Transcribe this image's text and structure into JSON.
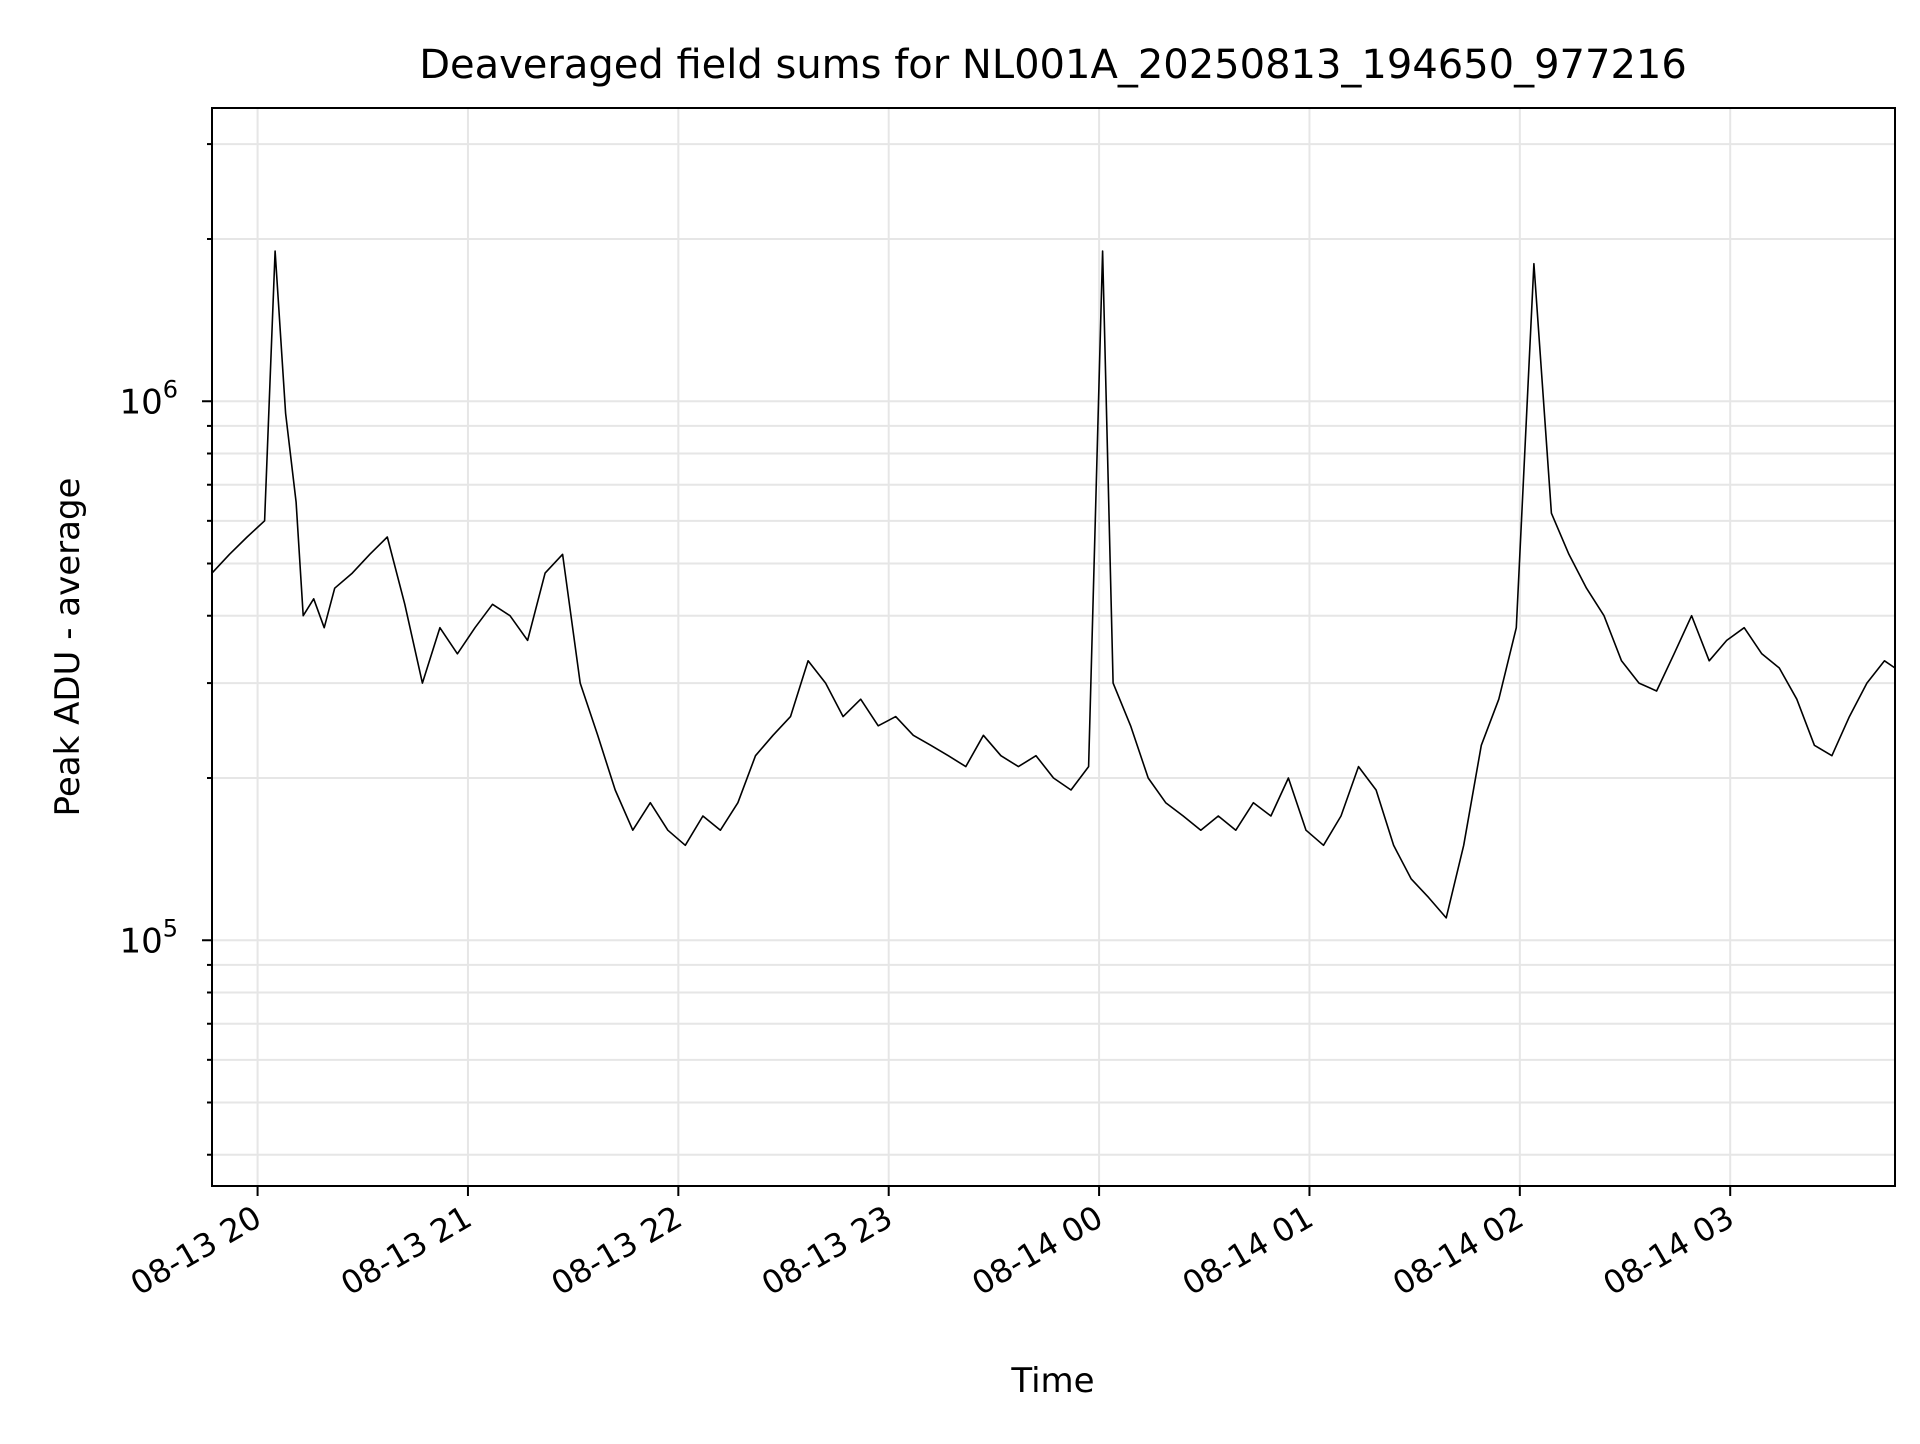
{
  "chart_data": {
    "type": "line",
    "title": "Deaveraged field sums for NL001A_20250813_194650_977216",
    "xlabel": "Time",
    "ylabel": "Peak ADU - average",
    "x_start": "2025-08-13 19:47",
    "x_end": "2025-08-14 03:47",
    "xlim": [
      "2025-08-13 19:47",
      "2025-08-14 03:47"
    ],
    "ylim": [
      35000,
      3500000
    ],
    "yscale": "log",
    "grid": true,
    "line_color": "#000000",
    "x_ticks": [
      {
        "value": "2025-08-13 20:00",
        "label": "08-13 20"
      },
      {
        "value": "2025-08-13 21:00",
        "label": "08-13 21"
      },
      {
        "value": "2025-08-13 22:00",
        "label": "08-13 22"
      },
      {
        "value": "2025-08-13 23:00",
        "label": "08-13 23"
      },
      {
        "value": "2025-08-14 00:00",
        "label": "08-14 00"
      },
      {
        "value": "2025-08-14 01:00",
        "label": "08-14 01"
      },
      {
        "value": "2025-08-14 02:00",
        "label": "08-14 02"
      },
      {
        "value": "2025-08-14 03:00",
        "label": "08-14 03"
      }
    ],
    "y_ticks": [
      {
        "value": 100000,
        "base": "10",
        "exp": "5"
      },
      {
        "value": 1000000,
        "base": "10",
        "exp": "6"
      }
    ],
    "series": [
      {
        "x": [
          "2025-08-13 19:47",
          "2025-08-13 19:52",
          "2025-08-13 19:57",
          "2025-08-13 20:02",
          "2025-08-13 20:05",
          "2025-08-13 20:08",
          "2025-08-13 20:11",
          "2025-08-13 20:13",
          "2025-08-13 20:16",
          "2025-08-13 20:19",
          "2025-08-13 20:22",
          "2025-08-13 20:27",
          "2025-08-13 20:32",
          "2025-08-13 20:37",
          "2025-08-13 20:42",
          "2025-08-13 20:47",
          "2025-08-13 20:52",
          "2025-08-13 20:57",
          "2025-08-13 21:02",
          "2025-08-13 21:07",
          "2025-08-13 21:12",
          "2025-08-13 21:17",
          "2025-08-13 21:22",
          "2025-08-13 21:27",
          "2025-08-13 21:32",
          "2025-08-13 21:37",
          "2025-08-13 21:42",
          "2025-08-13 21:47",
          "2025-08-13 21:52",
          "2025-08-13 21:57",
          "2025-08-13 22:02",
          "2025-08-13 22:07",
          "2025-08-13 22:12",
          "2025-08-13 22:17",
          "2025-08-13 22:22",
          "2025-08-13 22:27",
          "2025-08-13 22:32",
          "2025-08-13 22:37",
          "2025-08-13 22:42",
          "2025-08-13 22:47",
          "2025-08-13 22:52",
          "2025-08-13 22:57",
          "2025-08-13 23:02",
          "2025-08-13 23:07",
          "2025-08-13 23:12",
          "2025-08-13 23:17",
          "2025-08-13 23:22",
          "2025-08-13 23:27",
          "2025-08-13 23:32",
          "2025-08-13 23:37",
          "2025-08-13 23:42",
          "2025-08-13 23:47",
          "2025-08-13 23:52",
          "2025-08-13 23:57",
          "2025-08-14 00:01",
          "2025-08-14 00:04",
          "2025-08-14 00:09",
          "2025-08-14 00:14",
          "2025-08-14 00:19",
          "2025-08-14 00:24",
          "2025-08-14 00:29",
          "2025-08-14 00:34",
          "2025-08-14 00:39",
          "2025-08-14 00:44",
          "2025-08-14 00:49",
          "2025-08-14 00:54",
          "2025-08-14 00:59",
          "2025-08-14 01:04",
          "2025-08-14 01:09",
          "2025-08-14 01:14",
          "2025-08-14 01:19",
          "2025-08-14 01:24",
          "2025-08-14 01:29",
          "2025-08-14 01:34",
          "2025-08-14 01:39",
          "2025-08-14 01:44",
          "2025-08-14 01:49",
          "2025-08-14 01:54",
          "2025-08-14 01:59",
          "2025-08-14 02:04",
          "2025-08-14 02:09",
          "2025-08-14 02:14",
          "2025-08-14 02:19",
          "2025-08-14 02:24",
          "2025-08-14 02:29",
          "2025-08-14 02:34",
          "2025-08-14 02:39",
          "2025-08-14 02:44",
          "2025-08-14 02:49",
          "2025-08-14 02:54",
          "2025-08-14 02:59",
          "2025-08-14 03:04",
          "2025-08-14 03:09",
          "2025-08-14 03:14",
          "2025-08-14 03:19",
          "2025-08-14 03:24",
          "2025-08-14 03:29",
          "2025-08-14 03:34",
          "2025-08-14 03:39",
          "2025-08-14 03:44",
          "2025-08-14 03:47"
        ],
        "y": [
          480000,
          520000,
          560000,
          600000,
          1900000,
          950000,
          650000,
          400000,
          430000,
          380000,
          450000,
          480000,
          520000,
          560000,
          420000,
          300000,
          380000,
          340000,
          380000,
          420000,
          400000,
          360000,
          480000,
          520000,
          300000,
          240000,
          190000,
          160000,
          180000,
          160000,
          150000,
          170000,
          160000,
          180000,
          220000,
          240000,
          260000,
          330000,
          300000,
          260000,
          280000,
          250000,
          260000,
          240000,
          230000,
          220000,
          210000,
          240000,
          220000,
          210000,
          220000,
          200000,
          190000,
          210000,
          1900000,
          300000,
          250000,
          200000,
          180000,
          170000,
          160000,
          170000,
          160000,
          180000,
          170000,
          200000,
          160000,
          150000,
          170000,
          210000,
          190000,
          150000,
          130000,
          120000,
          110000,
          150000,
          230000,
          280000,
          380000,
          1800000,
          620000,
          520000,
          450000,
          400000,
          330000,
          300000,
          290000,
          340000,
          400000,
          330000,
          360000,
          380000,
          340000,
          320000,
          280000,
          230000,
          220000,
          260000,
          300000,
          330000,
          320000
        ]
      }
    ]
  }
}
